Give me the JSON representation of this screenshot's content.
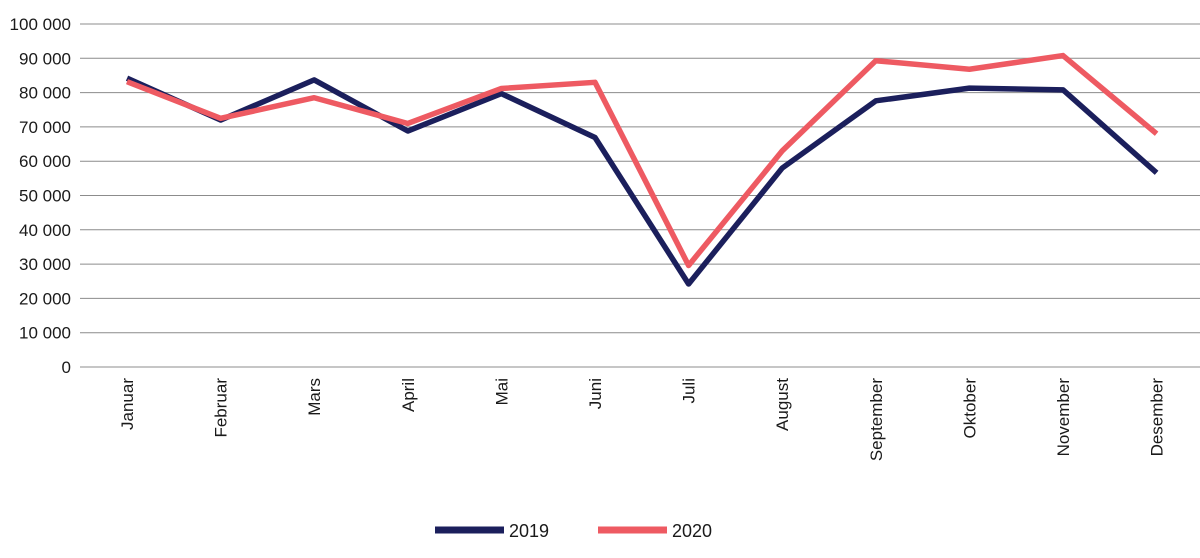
{
  "chart_data": {
    "type": "line",
    "title": "",
    "xlabel": "",
    "ylabel": "",
    "categories": [
      "Januar",
      "Februar",
      "Mars",
      "April",
      "Mai",
      "Juni",
      "Juli",
      "August",
      "September",
      "Oktober",
      "November",
      "Desember"
    ],
    "ylim": [
      0,
      100000
    ],
    "yticks": [
      0,
      10000,
      20000,
      30000,
      40000,
      50000,
      60000,
      70000,
      80000,
      90000,
      100000
    ],
    "ytick_labels": [
      "0",
      "10 000",
      "20 000",
      "30 000",
      "40 000",
      "50 000",
      "60 000",
      "70 000",
      "80 000",
      "90 000",
      "100 000"
    ],
    "grid": "horizontal",
    "legend_position": "bottom",
    "series": [
      {
        "name": "2019",
        "color": "#1b1f5c",
        "values": [
          84200,
          72000,
          83700,
          68800,
          79700,
          66900,
          24200,
          58000,
          77600,
          81300,
          80800,
          56600
        ]
      },
      {
        "name": "2020",
        "color": "#ee5a62",
        "values": [
          83200,
          72500,
          78500,
          71000,
          81200,
          83000,
          29600,
          63000,
          89300,
          86800,
          90800,
          68000
        ]
      }
    ]
  }
}
